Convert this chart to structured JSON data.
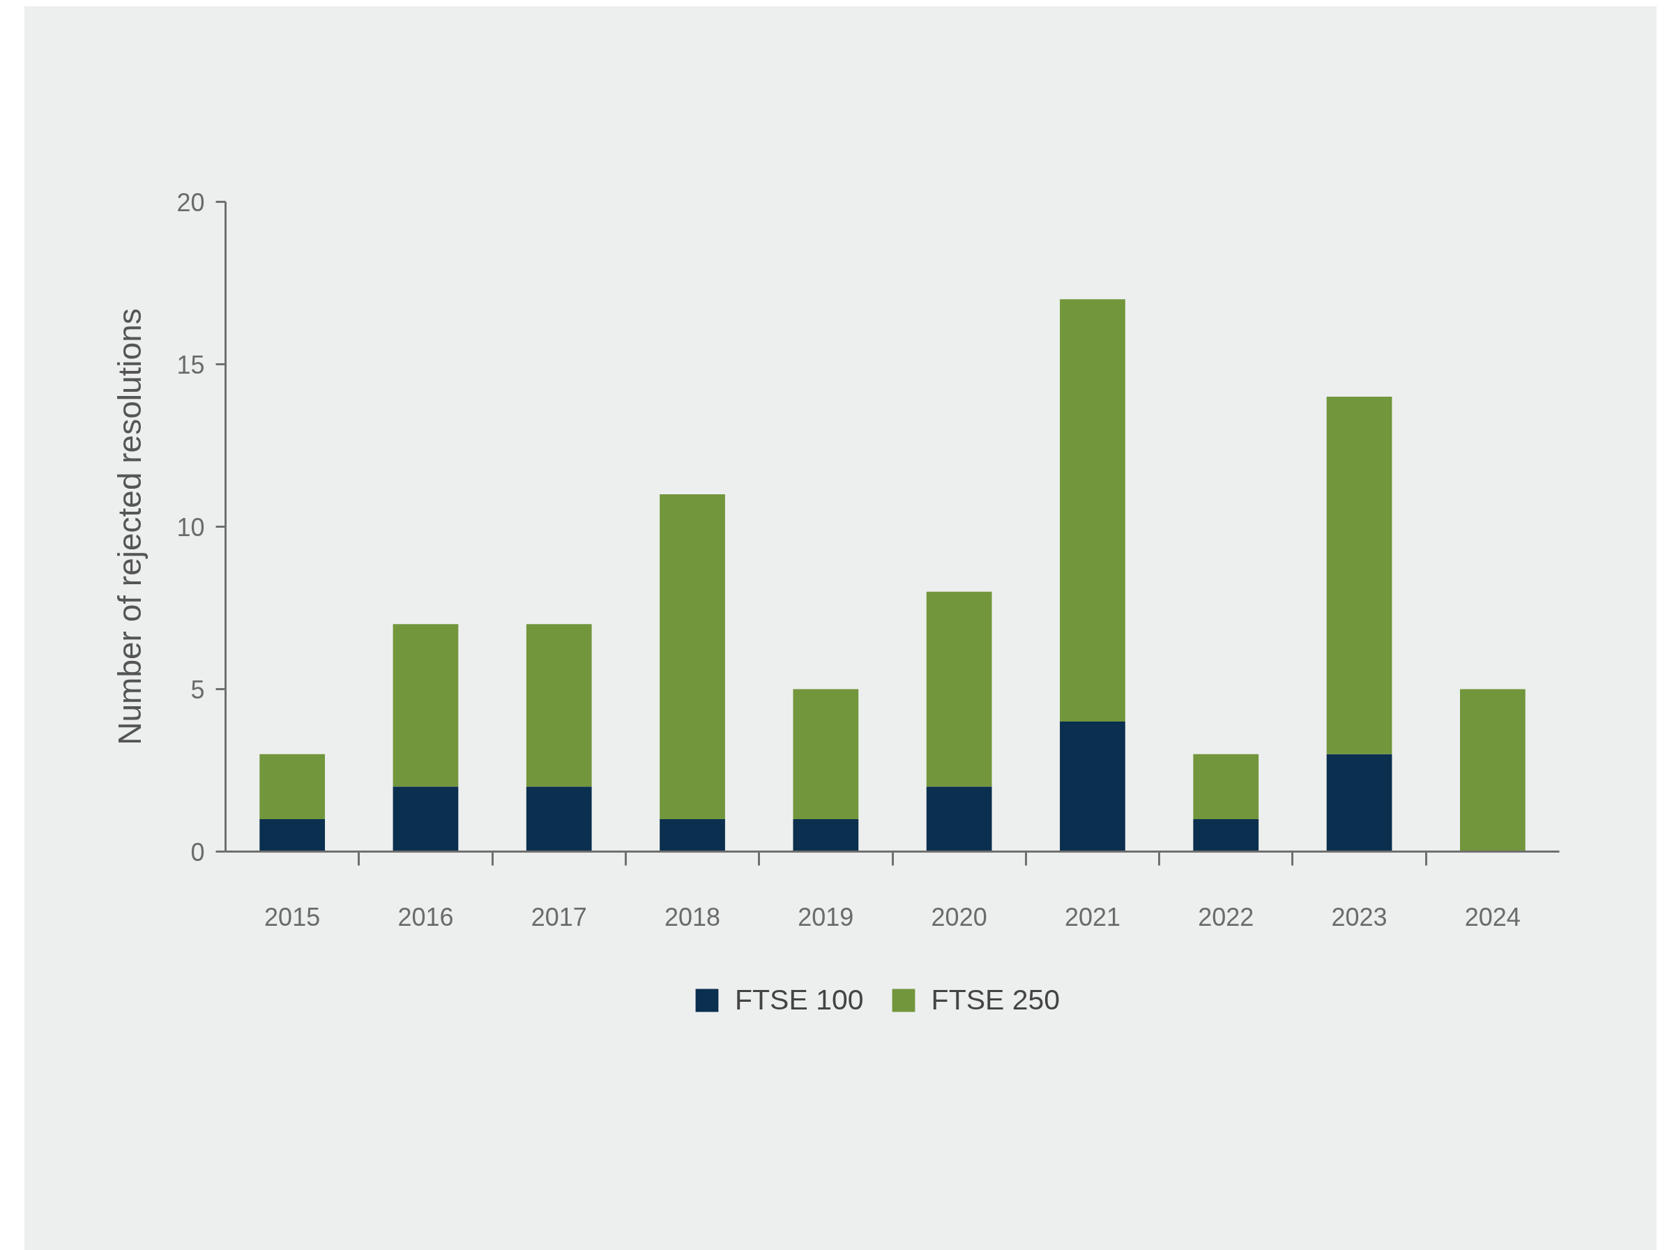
{
  "chart_data": {
    "type": "bar",
    "stacked": true,
    "ylabel": "Number of rejected resolutions",
    "categories": [
      "2015",
      "2016",
      "2017",
      "2018",
      "2019",
      "2020",
      "2021",
      "2022",
      "2023",
      "2024"
    ],
    "series": [
      {
        "name": "FTSE 100",
        "color": "#0a2f4f",
        "values": [
          1,
          2,
          2,
          1,
          1,
          2,
          4,
          1,
          3,
          0
        ]
      },
      {
        "name": "FTSE 250",
        "color": "#72963c",
        "values": [
          2,
          5,
          5,
          10,
          4,
          6,
          13,
          2,
          11,
          5
        ]
      }
    ],
    "ylim": [
      0,
      20
    ],
    "yticks": [
      0,
      5,
      10,
      15,
      20
    ],
    "grid": false,
    "legend": "bottom"
  }
}
